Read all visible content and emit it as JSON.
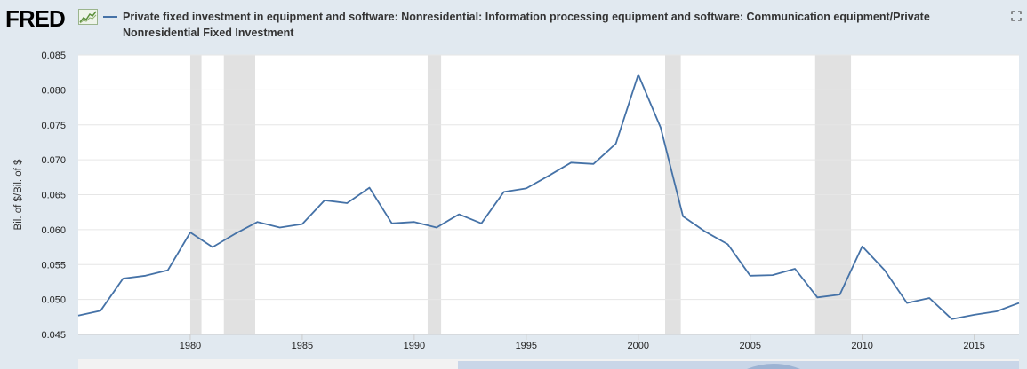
{
  "header": {
    "logo_text": "FRED",
    "logo_icon": "trend-chart-icon",
    "fullscreen_icon": "fullscreen-icon"
  },
  "colors": {
    "series": "#4572a7",
    "recession": "#e1e1e1",
    "background": "#e1e9f0",
    "plot_bg": "#ffffff"
  },
  "chart_data": {
    "type": "line",
    "title": "Private fixed investment in equipment and software: Nonresidential: Information processing equipment and software: Communication equipment/Private Nonresidential Fixed Investment",
    "ylabel": "Bil. of $/Bil. of $",
    "xlabel": "",
    "xlim": [
      1975,
      2017
    ],
    "ylim": [
      0.045,
      0.085
    ],
    "y_ticks": [
      "0.045",
      "0.050",
      "0.055",
      "0.060",
      "0.065",
      "0.070",
      "0.075",
      "0.080",
      "0.085"
    ],
    "x_ticks": [
      "1980",
      "1985",
      "1990",
      "1995",
      "2000",
      "2005",
      "2010",
      "2015"
    ],
    "recessions": [
      [
        1980.0,
        1980.5
      ],
      [
        1981.5,
        1982.9
      ],
      [
        1990.6,
        1991.2
      ],
      [
        2001.2,
        2001.9
      ],
      [
        2007.9,
        2009.5
      ]
    ],
    "series": [
      {
        "name": "Private fixed investment in equipment and software: Nonresidential: Information processing equipment and software: Communication equipment/Private Nonresidential Fixed Investment",
        "x": [
          1975,
          1976,
          1977,
          1978,
          1979,
          1980,
          1981,
          1982,
          1983,
          1984,
          1985,
          1986,
          1987,
          1988,
          1989,
          1990,
          1991,
          1992,
          1993,
          1994,
          1995,
          1996,
          1997,
          1998,
          1999,
          2000,
          2001,
          2002,
          2003,
          2004,
          2005,
          2006,
          2007,
          2008,
          2009,
          2010,
          2011,
          2012,
          2013,
          2014,
          2015,
          2016,
          2017
        ],
        "values": [
          0.0477,
          0.0484,
          0.053,
          0.0534,
          0.0542,
          0.0596,
          0.0575,
          0.0594,
          0.0611,
          0.0603,
          0.0608,
          0.0642,
          0.0638,
          0.066,
          0.0609,
          0.0611,
          0.0603,
          0.0622,
          0.0609,
          0.0654,
          0.0659,
          0.0677,
          0.0696,
          0.0694,
          0.0723,
          0.0822,
          0.0746,
          0.0619,
          0.0597,
          0.0579,
          0.0534,
          0.0535,
          0.0544,
          0.0503,
          0.0507,
          0.0576,
          0.0542,
          0.0495,
          0.0502,
          0.0472,
          0.0478,
          0.0483,
          0.0495
        ]
      }
    ]
  }
}
